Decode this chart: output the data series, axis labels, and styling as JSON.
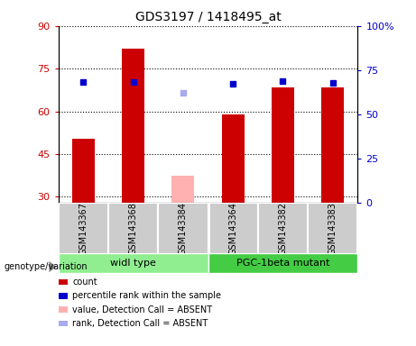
{
  "title": "GDS3197 / 1418495_at",
  "samples": [
    "GSM143367",
    "GSM143368",
    "GSM143384",
    "GSM143364",
    "GSM143382",
    "GSM143383"
  ],
  "count_values": [
    50.5,
    82.0,
    null,
    59.0,
    68.5,
    68.5
  ],
  "count_absent": [
    null,
    null,
    37.5,
    null,
    null,
    null
  ],
  "rank_values": [
    68.0,
    68.0,
    null,
    67.0,
    69.0,
    67.5
  ],
  "rank_absent": [
    null,
    null,
    62.0,
    null,
    null,
    null
  ],
  "ylim_left": [
    28,
    90
  ],
  "ylim_right": [
    0,
    100
  ],
  "yticks_left": [
    30,
    45,
    60,
    75,
    90
  ],
  "yticks_right": [
    0,
    25,
    50,
    75,
    100
  ],
  "ytick_labels_right": [
    "0",
    "25",
    "50",
    "75",
    "100%"
  ],
  "group_labels": [
    "widl type",
    "PGC-1beta mutant"
  ],
  "bar_color_present": "#cc0000",
  "bar_color_absent": "#ffb0b0",
  "rank_color_present": "#0000cc",
  "rank_color_absent": "#aaaaee",
  "group_color_wt": "#90ee90",
  "group_color_mut": "#44cc44",
  "bar_width": 0.45,
  "legend_items": [
    {
      "label": "count",
      "color": "#cc0000"
    },
    {
      "label": "percentile rank within the sample",
      "color": "#0000cc"
    },
    {
      "label": "value, Detection Call = ABSENT",
      "color": "#ffb0b0"
    },
    {
      "label": "rank, Detection Call = ABSENT",
      "color": "#aaaaee"
    }
  ]
}
